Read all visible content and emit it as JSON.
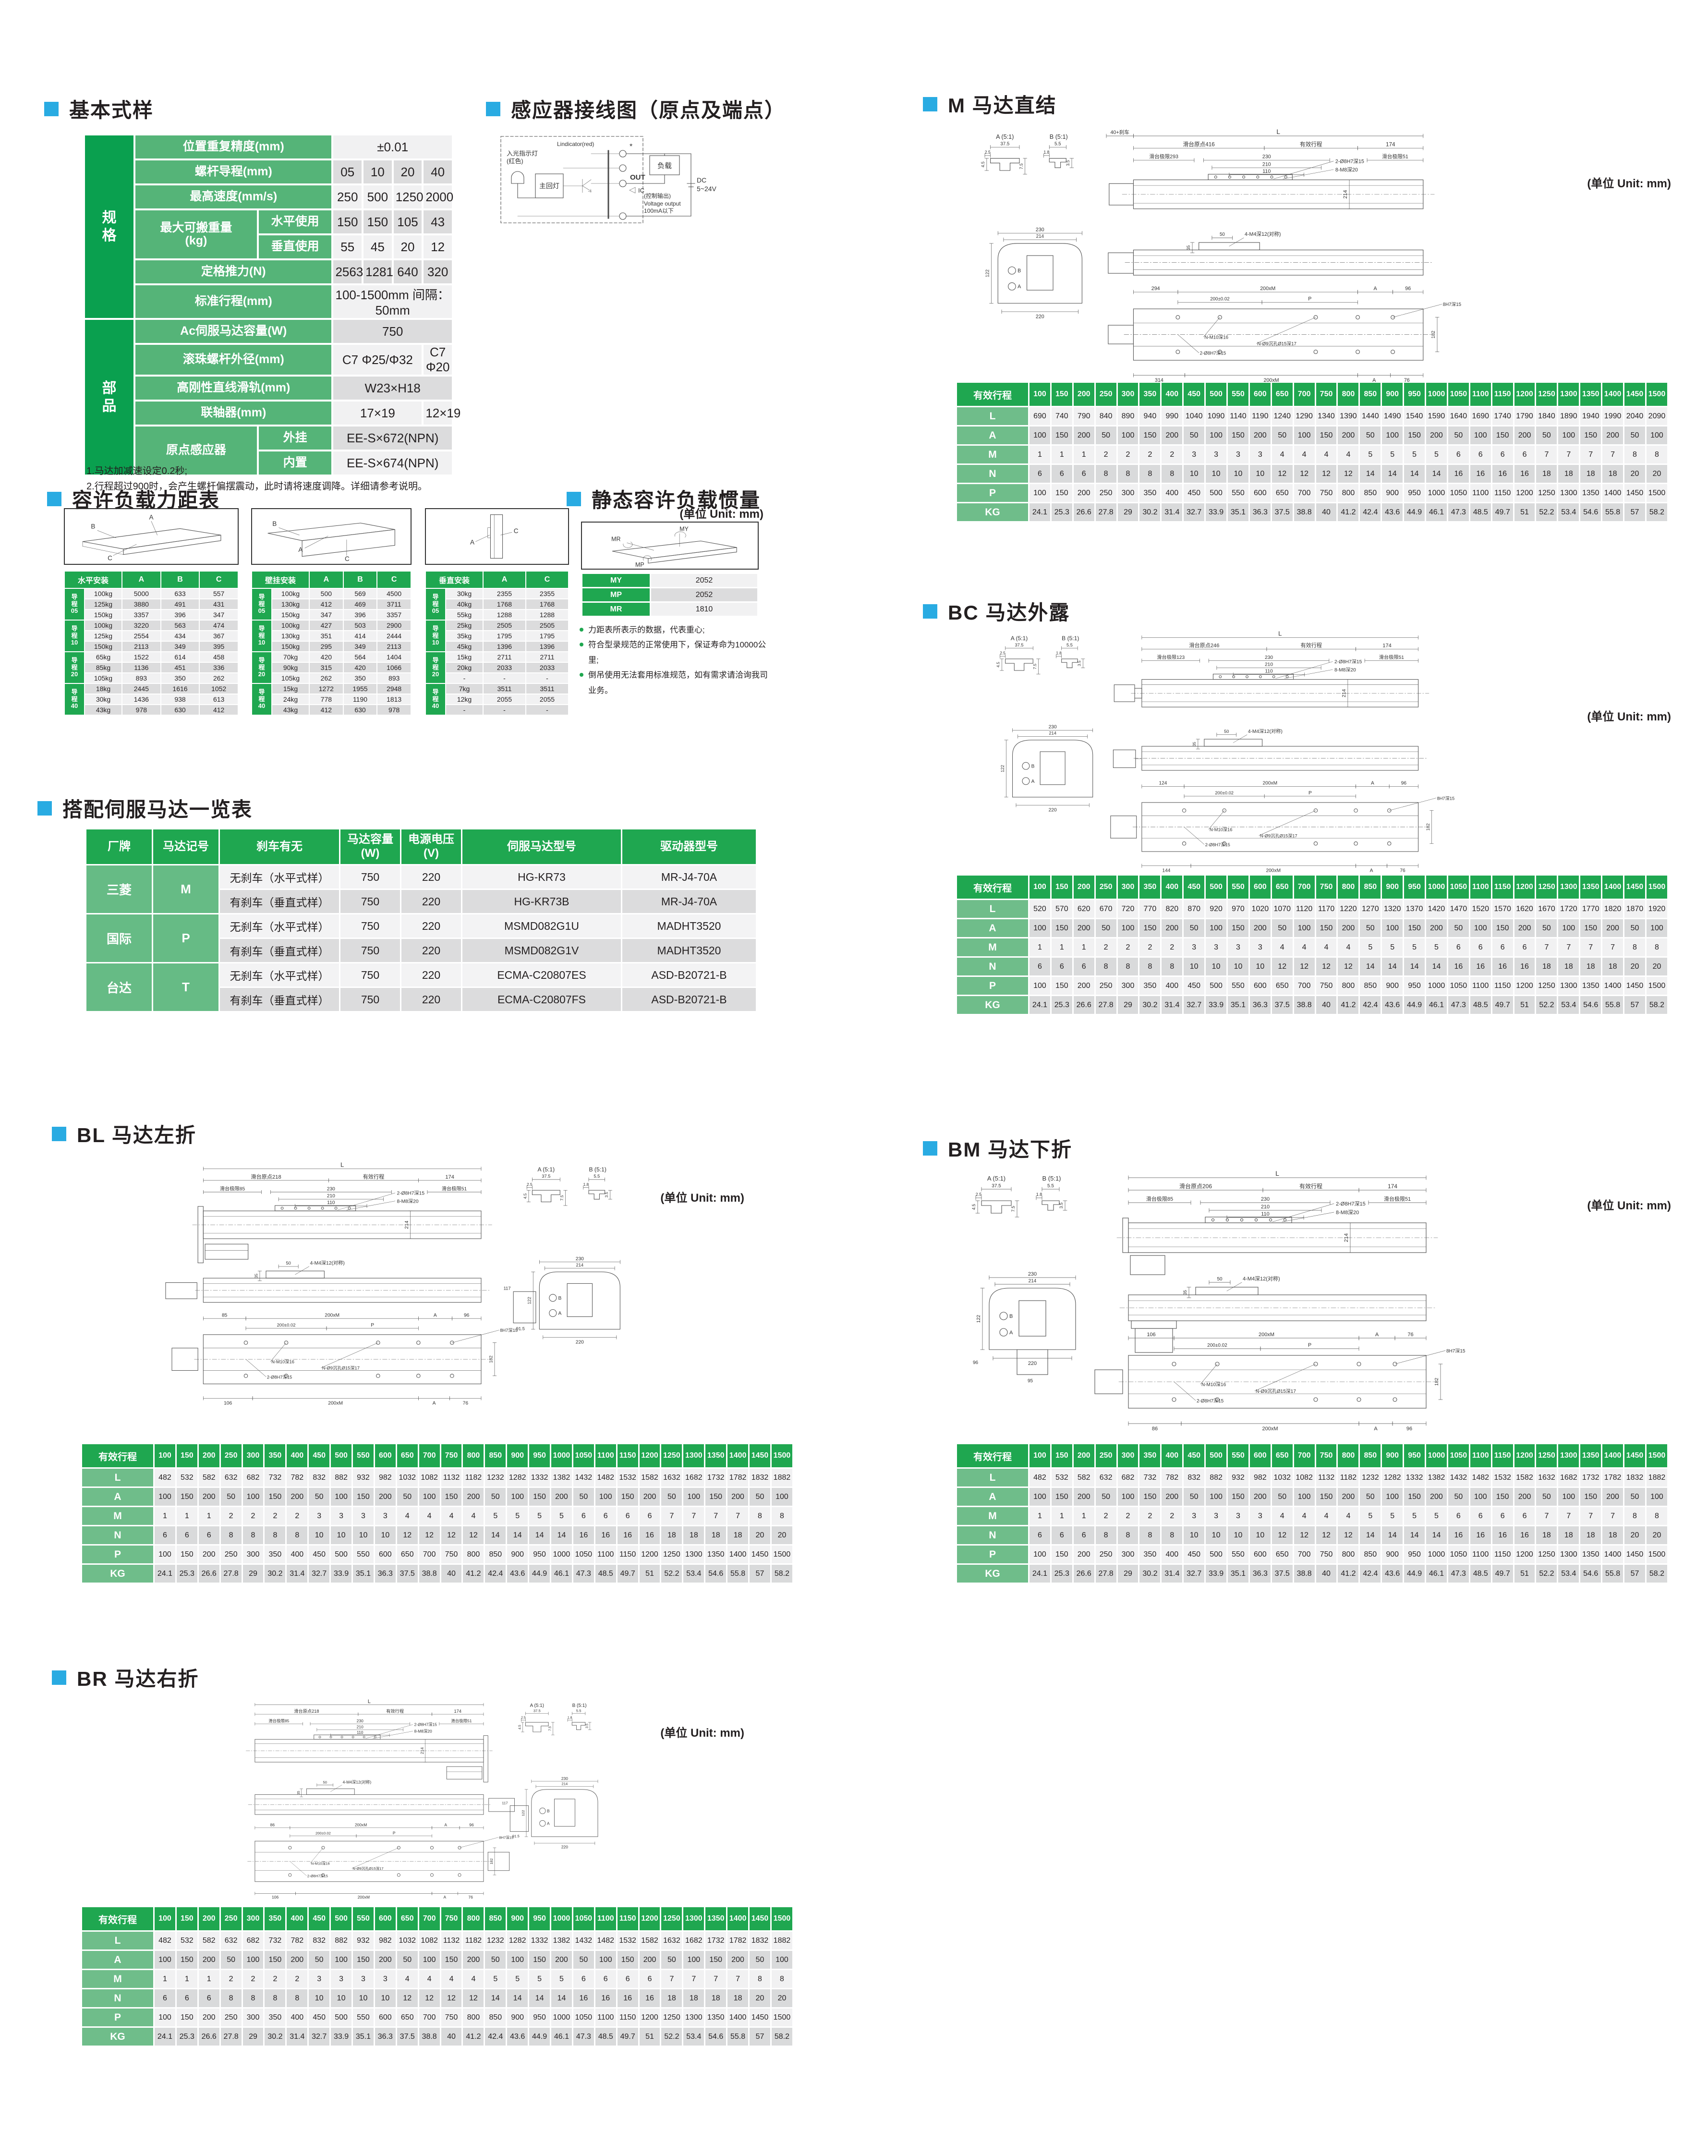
{
  "page": {
    "unit_label": "(单位 Unit: mm)"
  },
  "basic": {
    "title": "基本式样",
    "spec_group": "规\n格",
    "parts_group": "部\n品",
    "repeat_label": "位置重复精度(mm)",
    "repeat_value": "±0.01",
    "lead_label": "螺杆导程(mm)",
    "lead_values": [
      "05",
      "10",
      "20",
      "40"
    ],
    "speed_label": "最高速度(mm/s)",
    "speed_values": [
      "250",
      "500",
      "1250",
      "2000"
    ],
    "payload_label": "最大可搬重量\n(kg)",
    "payload_h_label": "水平使用",
    "payload_h_values": [
      "150",
      "150",
      "105",
      "43"
    ],
    "payload_v_label": "垂直使用",
    "payload_v_values": [
      "55",
      "45",
      "20",
      "12"
    ],
    "thrust_label": "定格推力(N)",
    "thrust_values": [
      "2563",
      "1281",
      "640",
      "320"
    ],
    "stroke_label": "标准行程(mm)",
    "stroke_value": "100-1500mm 间隔：50mm",
    "motor_label": "Ac伺服马达容量(W)",
    "motor_value": "750",
    "screw_label": "滚珠螺杆外径(mm)",
    "screw_value_a": "C7 Φ25/Φ32",
    "screw_value_b": "C7 Φ20",
    "rail_label": "高刚性直线滑轨(mm)",
    "rail_value": "W23×H18",
    "coupling_label": "联轴器(mm)",
    "coupling_value_a": "17×19",
    "coupling_value_b": "12×19",
    "origin_label": "原点感应器",
    "origin_ext_label": "外挂",
    "origin_ext_value": "EE-S×672(NPN)",
    "origin_int_label": "内置",
    "origin_int_value": "EE-S×674(NPN)",
    "notes": [
      "1.马达加减速设定0.2秒;",
      "2.行程超过900时，会产生螺杆偏摆震动，此时请将速度调降。详细请参考说明。"
    ]
  },
  "sensor": {
    "title": "感应器接线图（原点及端点）",
    "indicator": "Lindicator(red)",
    "led1": "入光指示灯",
    "led2": "(红色)",
    "main_lamp": "主回灯",
    "out": "OUT",
    "ic": "IC",
    "star": "*",
    "ctrl": "(控制输出)",
    "voltage": "Voltage output",
    "current": "100mA以下",
    "load": "负载",
    "dc1": "DC",
    "dc2": "5~24V"
  },
  "load": {
    "title": "容许负载力距表",
    "tables": [
      {
        "name": "水平安装",
        "cols": [
          "A",
          "B",
          "C"
        ],
        "diagram": [
          "A",
          "B",
          "C"
        ],
        "groups": [
          {
            "label": "导\n程\n05",
            "rows": [
              [
                "100kg",
                "5000",
                "633",
                "557"
              ],
              [
                "125kg",
                "3880",
                "491",
                "431"
              ],
              [
                "150kg",
                "3357",
                "396",
                "347"
              ]
            ]
          },
          {
            "label": "导\n程\n10",
            "rows": [
              [
                "100kg",
                "3220",
                "563",
                "474"
              ],
              [
                "125kg",
                "2554",
                "434",
                "367"
              ],
              [
                "150kg",
                "2113",
                "349",
                "395"
              ]
            ]
          },
          {
            "label": "导\n程\n20",
            "rows": [
              [
                "65kg",
                "1522",
                "614",
                "458"
              ],
              [
                "85kg",
                "1136",
                "451",
                "336"
              ],
              [
                "105kg",
                "893",
                "350",
                "262"
              ]
            ]
          },
          {
            "label": "导\n程\n40",
            "rows": [
              [
                "18kg",
                "2445",
                "1616",
                "1052"
              ],
              [
                "30kg",
                "1436",
                "938",
                "613"
              ],
              [
                "43kg",
                "978",
                "630",
                "412"
              ]
            ]
          }
        ]
      },
      {
        "name": "壁挂安装",
        "cols": [
          "A",
          "B",
          "C"
        ],
        "diagram": [
          "B",
          "A",
          "C"
        ],
        "groups": [
          {
            "label": "导\n程\n05",
            "rows": [
              [
                "100kg",
                "500",
                "569",
                "4500"
              ],
              [
                "130kg",
                "412",
                "469",
                "3711"
              ],
              [
                "150kg",
                "347",
                "396",
                "3357"
              ]
            ]
          },
          {
            "label": "导\n程\n10",
            "rows": [
              [
                "100kg",
                "427",
                "503",
                "2900"
              ],
              [
                "130kg",
                "351",
                "414",
                "2444"
              ],
              [
                "150kg",
                "295",
                "349",
                "2113"
              ]
            ]
          },
          {
            "label": "导\n程\n20",
            "rows": [
              [
                "70kg",
                "420",
                "564",
                "1404"
              ],
              [
                "90kg",
                "315",
                "420",
                "1066"
              ],
              [
                "105kg",
                "262",
                "350",
                "893"
              ]
            ]
          },
          {
            "label": "导\n程\n40",
            "rows": [
              [
                "15kg",
                "1272",
                "1955",
                "2948"
              ],
              [
                "24kg",
                "778",
                "1190",
                "1813"
              ],
              [
                "43kg",
                "412",
                "630",
                "978"
              ]
            ]
          }
        ]
      },
      {
        "name": "垂直安装",
        "cols": [
          "A",
          "C"
        ],
        "diagram": [
          "A",
          "C"
        ],
        "groups": [
          {
            "label": "导\n程\n05",
            "rows": [
              [
                "30kg",
                "2355",
                "2355"
              ],
              [
                "40kg",
                "1768",
                "1768"
              ],
              [
                "55kg",
                "1288",
                "1288"
              ]
            ]
          },
          {
            "label": "导\n程\n10",
            "rows": [
              [
                "25kg",
                "2505",
                "2505"
              ],
              [
                "35kg",
                "1795",
                "1795"
              ],
              [
                "45kg",
                "1396",
                "1396"
              ]
            ]
          },
          {
            "label": "导\n程\n20",
            "rows": [
              [
                "15kg",
                "2711",
                "2711"
              ],
              [
                "20kg",
                "2033",
                "2033"
              ],
              [
                "-",
                "-",
                "-"
              ]
            ]
          },
          {
            "label": "导\n程\n40",
            "rows": [
              [
                "7kg",
                "3511",
                "3511"
              ],
              [
                "12kg",
                "2055",
                "2055"
              ],
              [
                "-",
                "-",
                "-"
              ]
            ]
          }
        ]
      }
    ]
  },
  "inertia": {
    "title": "静态容许负载惯量",
    "rows": [
      [
        "MY",
        "2052"
      ],
      [
        "MP",
        "2052"
      ],
      [
        "MR",
        "1810"
      ]
    ],
    "diagram": [
      "MY",
      "MR",
      "MP"
    ],
    "notes": [
      "力距表所表示的数据，代表重心;",
      "符合型录规范的正常使用下，保证寿命为10000公里;",
      "倒吊使用无法套用标准规范，如有需求请洽询我司业务。"
    ]
  },
  "servo": {
    "title": "搭配伺服马达一览表",
    "headers": [
      "厂牌",
      "马达记号",
      "刹车有无",
      "马达容量\n(W)",
      "电源电压\n(V)",
      "伺服马达型号",
      "驱动器型号"
    ],
    "groups": [
      {
        "brand": "三菱",
        "code": "M",
        "rows": [
          [
            "无刹车（水平式样）",
            "750",
            "220",
            "HG-KR73",
            "MR-J4-70A"
          ],
          [
            "有刹车（垂直式样）",
            "750",
            "220",
            "HG-KR73B",
            "MR-J4-70A"
          ]
        ]
      },
      {
        "brand": "国际",
        "code": "P",
        "rows": [
          [
            "无刹车（水平式样）",
            "750",
            "220",
            "MSMD082G1U",
            "MADHT3520"
          ],
          [
            "有刹车（垂直式样）",
            "750",
            "220",
            "MSMD082G1V",
            "MADHT3520"
          ]
        ]
      },
      {
        "brand": "台达",
        "code": "T",
        "rows": [
          [
            "无刹车（水平式样）",
            "750",
            "220",
            "ECMA-C20807ES",
            "ASD-B20721-B"
          ],
          [
            "有刹车（垂直式样）",
            "750",
            "220",
            "ECMA-C20807FS",
            "ASD-B20721-B"
          ]
        ]
      }
    ]
  },
  "stroke": {
    "header": "有效行程",
    "cols": [
      "100",
      "150",
      "200",
      "250",
      "300",
      "350",
      "400",
      "450",
      "500",
      "550",
      "600",
      "650",
      "700",
      "750",
      "800",
      "850",
      "900",
      "950",
      "1000",
      "1050",
      "1100",
      "1150",
      "1200",
      "1250",
      "1300",
      "1350",
      "1400",
      "1450",
      "1500"
    ],
    "row_labels": [
      "L",
      "A",
      "M",
      "N",
      "P",
      "KG"
    ],
    "common": {
      "A": [
        "100",
        "150",
        "200",
        "50",
        "100",
        "150",
        "200",
        "50",
        "100",
        "150",
        "200",
        "50",
        "100",
        "150",
        "200",
        "50",
        "100",
        "150",
        "200",
        "50",
        "100",
        "150",
        "200",
        "50",
        "100",
        "150",
        "200",
        "50",
        "100"
      ],
      "M": [
        "1",
        "1",
        "1",
        "2",
        "2",
        "2",
        "2",
        "3",
        "3",
        "3",
        "3",
        "4",
        "4",
        "4",
        "4",
        "5",
        "5",
        "5",
        "5",
        "6",
        "6",
        "6",
        "6",
        "7",
        "7",
        "7",
        "7",
        "8",
        "8"
      ],
      "N": [
        "6",
        "6",
        "6",
        "8",
        "8",
        "8",
        "8",
        "10",
        "10",
        "10",
        "10",
        "12",
        "12",
        "12",
        "12",
        "14",
        "14",
        "14",
        "14",
        "16",
        "16",
        "16",
        "16",
        "18",
        "18",
        "18",
        "18",
        "20",
        "20"
      ],
      "P": [
        "100",
        "150",
        "200",
        "250",
        "300",
        "350",
        "400",
        "450",
        "500",
        "550",
        "600",
        "650",
        "700",
        "750",
        "800",
        "850",
        "900",
        "950",
        "1000",
        "1050",
        "1100",
        "1150",
        "1200",
        "1250",
        "1300",
        "1350",
        "1400",
        "1450",
        "1500"
      ],
      "KG": [
        "24.1",
        "25.3",
        "26.6",
        "27.8",
        "29",
        "30.2",
        "31.4",
        "32.7",
        "33.9",
        "35.1",
        "36.3",
        "37.5",
        "38.8",
        "40",
        "41.2",
        "42.4",
        "43.6",
        "44.9",
        "46.1",
        "47.3",
        "48.5",
        "49.7",
        "51",
        "52.2",
        "53.4",
        "54.6",
        "55.8",
        "57",
        "58.2"
      ]
    }
  },
  "drawing_common": {
    "L": "L",
    "stroke_dim": "有效行程",
    "end_dim": "174",
    "d230": "230",
    "d210": "210",
    "d110": "110",
    "holes_a": "2-Ø8H7深15",
    "holes_b": "8-M8深20",
    "h214": "214",
    "detail_a": "A (5:1)",
    "detail_b": "B (5:1)",
    "ref_a": "A",
    "ref_b": "B",
    "da": [
      "37.5",
      "2.5",
      "4.5",
      "7.5"
    ],
    "db": [
      "5.5",
      "1.8",
      "3.5"
    ],
    "cs": [
      "230",
      "214",
      "122",
      "220"
    ],
    "mid": [
      "35",
      "50",
      "4-M4深12(对称)"
    ],
    "mid_tol": "200±0.02",
    "p": "P",
    "d182": "182",
    "lbl_8h7": "8H7深15",
    "lbl_m10": "N-M10深16",
    "lbl_sink": "N-Ø9沉孔Ø15深17",
    "lbl_2h7": "2-Ø8H7深15",
    "x200": "200xM",
    "a": "A"
  },
  "motors": [
    {
      "id": "m",
      "title": "M 马达直结",
      "style": "direct",
      "brake": "40+刹车",
      "origin": "滑台原点416",
      "limit_l": "滑台极限293",
      "limit_r": "滑台极限51",
      "bt": [
        "294",
        "96"
      ],
      "bb": [
        "314",
        "76"
      ],
      "L": [
        "690",
        "740",
        "790",
        "840",
        "890",
        "940",
        "990",
        "1040",
        "1090",
        "1140",
        "1190",
        "1240",
        "1290",
        "1340",
        "1390",
        "1440",
        "1490",
        "1540",
        "1590",
        "1640",
        "1690",
        "1740",
        "1790",
        "1840",
        "1890",
        "1940",
        "1990",
        "2040",
        "2090"
      ]
    },
    {
      "id": "bc",
      "title": "BC 马达外露",
      "style": "exposed",
      "brake": "",
      "origin": "滑台原点246",
      "limit_l": "滑台极限123",
      "limit_r": "滑台极限51",
      "bt": [
        "124",
        "96"
      ],
      "bb": [
        "144",
        "76"
      ],
      "L": [
        "520",
        "570",
        "620",
        "670",
        "720",
        "770",
        "820",
        "870",
        "920",
        "970",
        "1020",
        "1070",
        "1120",
        "1170",
        "1220",
        "1270",
        "1320",
        "1370",
        "1420",
        "1470",
        "1520",
        "1570",
        "1620",
        "1670",
        "1720",
        "1770",
        "1820",
        "1870",
        "1920"
      ]
    },
    {
      "id": "bl",
      "title": "BL 马达左折",
      "style": "left",
      "brake": "",
      "origin": "滑台原点218",
      "limit_l": "滑台极限85",
      "limit_r": "滑台极限51",
      "bt": [
        "85",
        "96"
      ],
      "bb": [
        "106",
        "76"
      ],
      "cse": [
        "117",
        "91.5"
      ],
      "L": [
        "482",
        "532",
        "582",
        "632",
        "682",
        "732",
        "782",
        "832",
        "882",
        "932",
        "982",
        "1032",
        "1082",
        "1132",
        "1182",
        "1232",
        "1282",
        "1332",
        "1382",
        "1432",
        "1482",
        "1532",
        "1582",
        "1632",
        "1682",
        "1732",
        "1782",
        "1832",
        "1882"
      ]
    },
    {
      "id": "bm",
      "title": "BM 马达下折",
      "style": "down",
      "brake": "",
      "origin": "滑台原点206",
      "limit_l": "滑台极限85",
      "limit_r": "滑台极限51",
      "bt": [
        "106",
        "76"
      ],
      "bb": [
        "86",
        "96"
      ],
      "cse": [
        "96",
        "95"
      ],
      "L": [
        "482",
        "532",
        "582",
        "632",
        "682",
        "732",
        "782",
        "832",
        "882",
        "932",
        "982",
        "1032",
        "1082",
        "1132",
        "1182",
        "1232",
        "1282",
        "1332",
        "1382",
        "1432",
        "1482",
        "1532",
        "1582",
        "1632",
        "1682",
        "1732",
        "1782",
        "1832",
        "1882"
      ]
    },
    {
      "id": "br",
      "title": "BR 马达右折",
      "style": "right",
      "brake": "",
      "origin": "滑台原点218",
      "limit_l": "滑台极限85",
      "limit_r": "滑台极限51",
      "bt": [
        "86",
        "96"
      ],
      "bb": [
        "106",
        "76"
      ],
      "cse": [
        "117",
        "91.5"
      ],
      "L": [
        "482",
        "532",
        "582",
        "632",
        "682",
        "732",
        "782",
        "832",
        "882",
        "932",
        "982",
        "1032",
        "1082",
        "1132",
        "1182",
        "1232",
        "1282",
        "1332",
        "1382",
        "1432",
        "1482",
        "1532",
        "1582",
        "1632",
        "1682",
        "1732",
        "1782",
        "1832",
        "1882"
      ]
    }
  ]
}
